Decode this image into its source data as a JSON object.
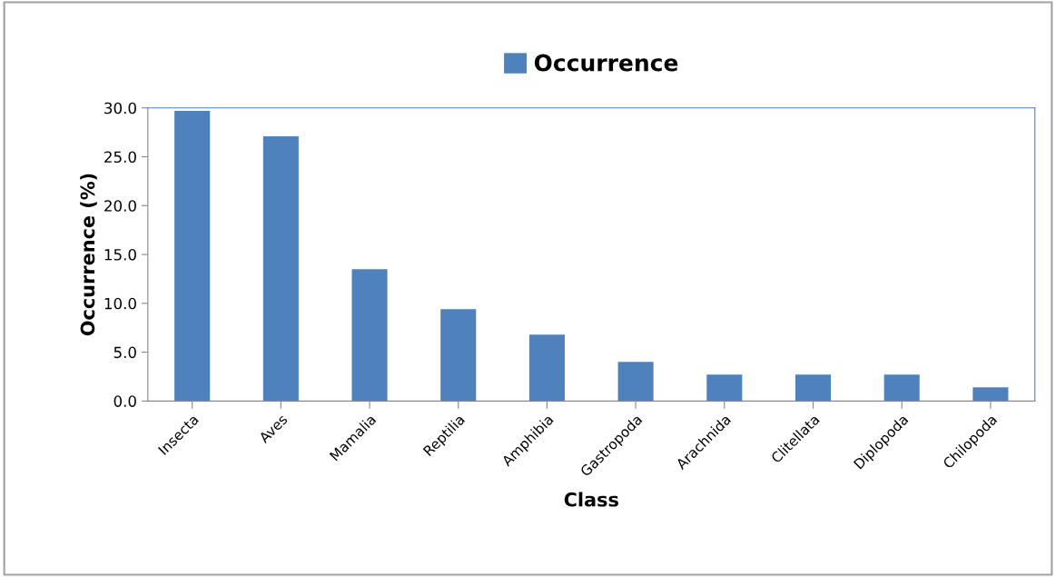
{
  "chart_data": {
    "type": "bar",
    "categories": [
      "Insecta",
      "Aves",
      "Mamalia",
      "Reptilia",
      "Amphibia",
      "Gastropoda",
      "Arachnida",
      "Clitellata",
      "Diplopoda",
      "Chilopoda"
    ],
    "series": [
      {
        "name": "Occurrence",
        "color": "#4f81bd",
        "values": [
          29.7,
          27.1,
          13.5,
          9.4,
          6.8,
          4.0,
          2.7,
          2.7,
          2.7,
          1.4
        ]
      }
    ],
    "xlabel": "Class",
    "ylabel": "Occurrence (%)",
    "ylim": [
      0,
      30
    ],
    "yticks": [
      {
        "value": 0,
        "label": "0.0"
      },
      {
        "value": 5,
        "label": "5.0"
      },
      {
        "value": 10,
        "label": "10.0"
      },
      {
        "value": 15,
        "label": "15.0"
      },
      {
        "value": 20,
        "label": "20.0"
      },
      {
        "value": 25,
        "label": "25.0"
      },
      {
        "value": 30,
        "label": "30.0"
      }
    ],
    "legend": "top",
    "grid": false
  }
}
